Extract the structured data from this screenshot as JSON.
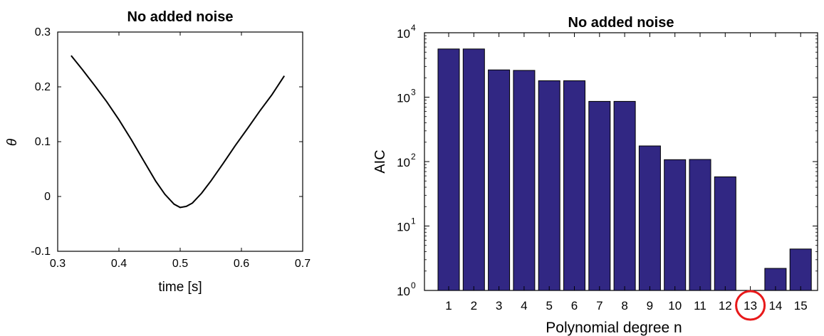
{
  "chart_data": [
    {
      "type": "line",
      "title": "No added noise",
      "xlabel": "time [s]",
      "ylabel": "θ",
      "xlim": [
        0.3,
        0.7
      ],
      "ylim": [
        -0.1,
        0.3
      ],
      "xticks": [
        "0.3",
        "0.4",
        "0.5",
        "0.6",
        "0.7"
      ],
      "yticks": [
        "-0.1",
        "0",
        "0.1",
        "0.2",
        "0.3"
      ],
      "grid": false,
      "line_color": "#000000",
      "series": [
        {
          "x": [
            0.322,
            0.34,
            0.36,
            0.38,
            0.4,
            0.42,
            0.44,
            0.46,
            0.475,
            0.49,
            0.5,
            0.51,
            0.52,
            0.535,
            0.55,
            0.57,
            0.59,
            0.61,
            0.63,
            0.65,
            0.67
          ],
          "y": [
            0.257,
            0.232,
            0.203,
            0.173,
            0.14,
            0.104,
            0.066,
            0.028,
            0.004,
            -0.014,
            -0.02,
            -0.018,
            -0.012,
            0.006,
            0.028,
            0.06,
            0.093,
            0.124,
            0.156,
            0.186,
            0.22
          ]
        }
      ]
    },
    {
      "type": "bar",
      "title": "No added noise",
      "xlabel": "Polynomial degree n",
      "ylabel": "AIC",
      "yscale": "log",
      "ylim": [
        1,
        10000
      ],
      "ytick_exponents": [
        "0",
        "1",
        "2",
        "3",
        "4"
      ],
      "ytick_base": "10",
      "categories": [
        "1",
        "2",
        "3",
        "4",
        "5",
        "6",
        "7",
        "8",
        "9",
        "10",
        "11",
        "12",
        "13",
        "14",
        "15"
      ],
      "values": [
        5600,
        5600,
        2650,
        2600,
        1800,
        1800,
        860,
        860,
        175,
        107,
        108,
        58,
        null,
        2.2,
        4.4
      ],
      "bar_color": "#312783",
      "highlight_category": "13",
      "highlight_color": "#e8191a",
      "grid": false
    }
  ]
}
